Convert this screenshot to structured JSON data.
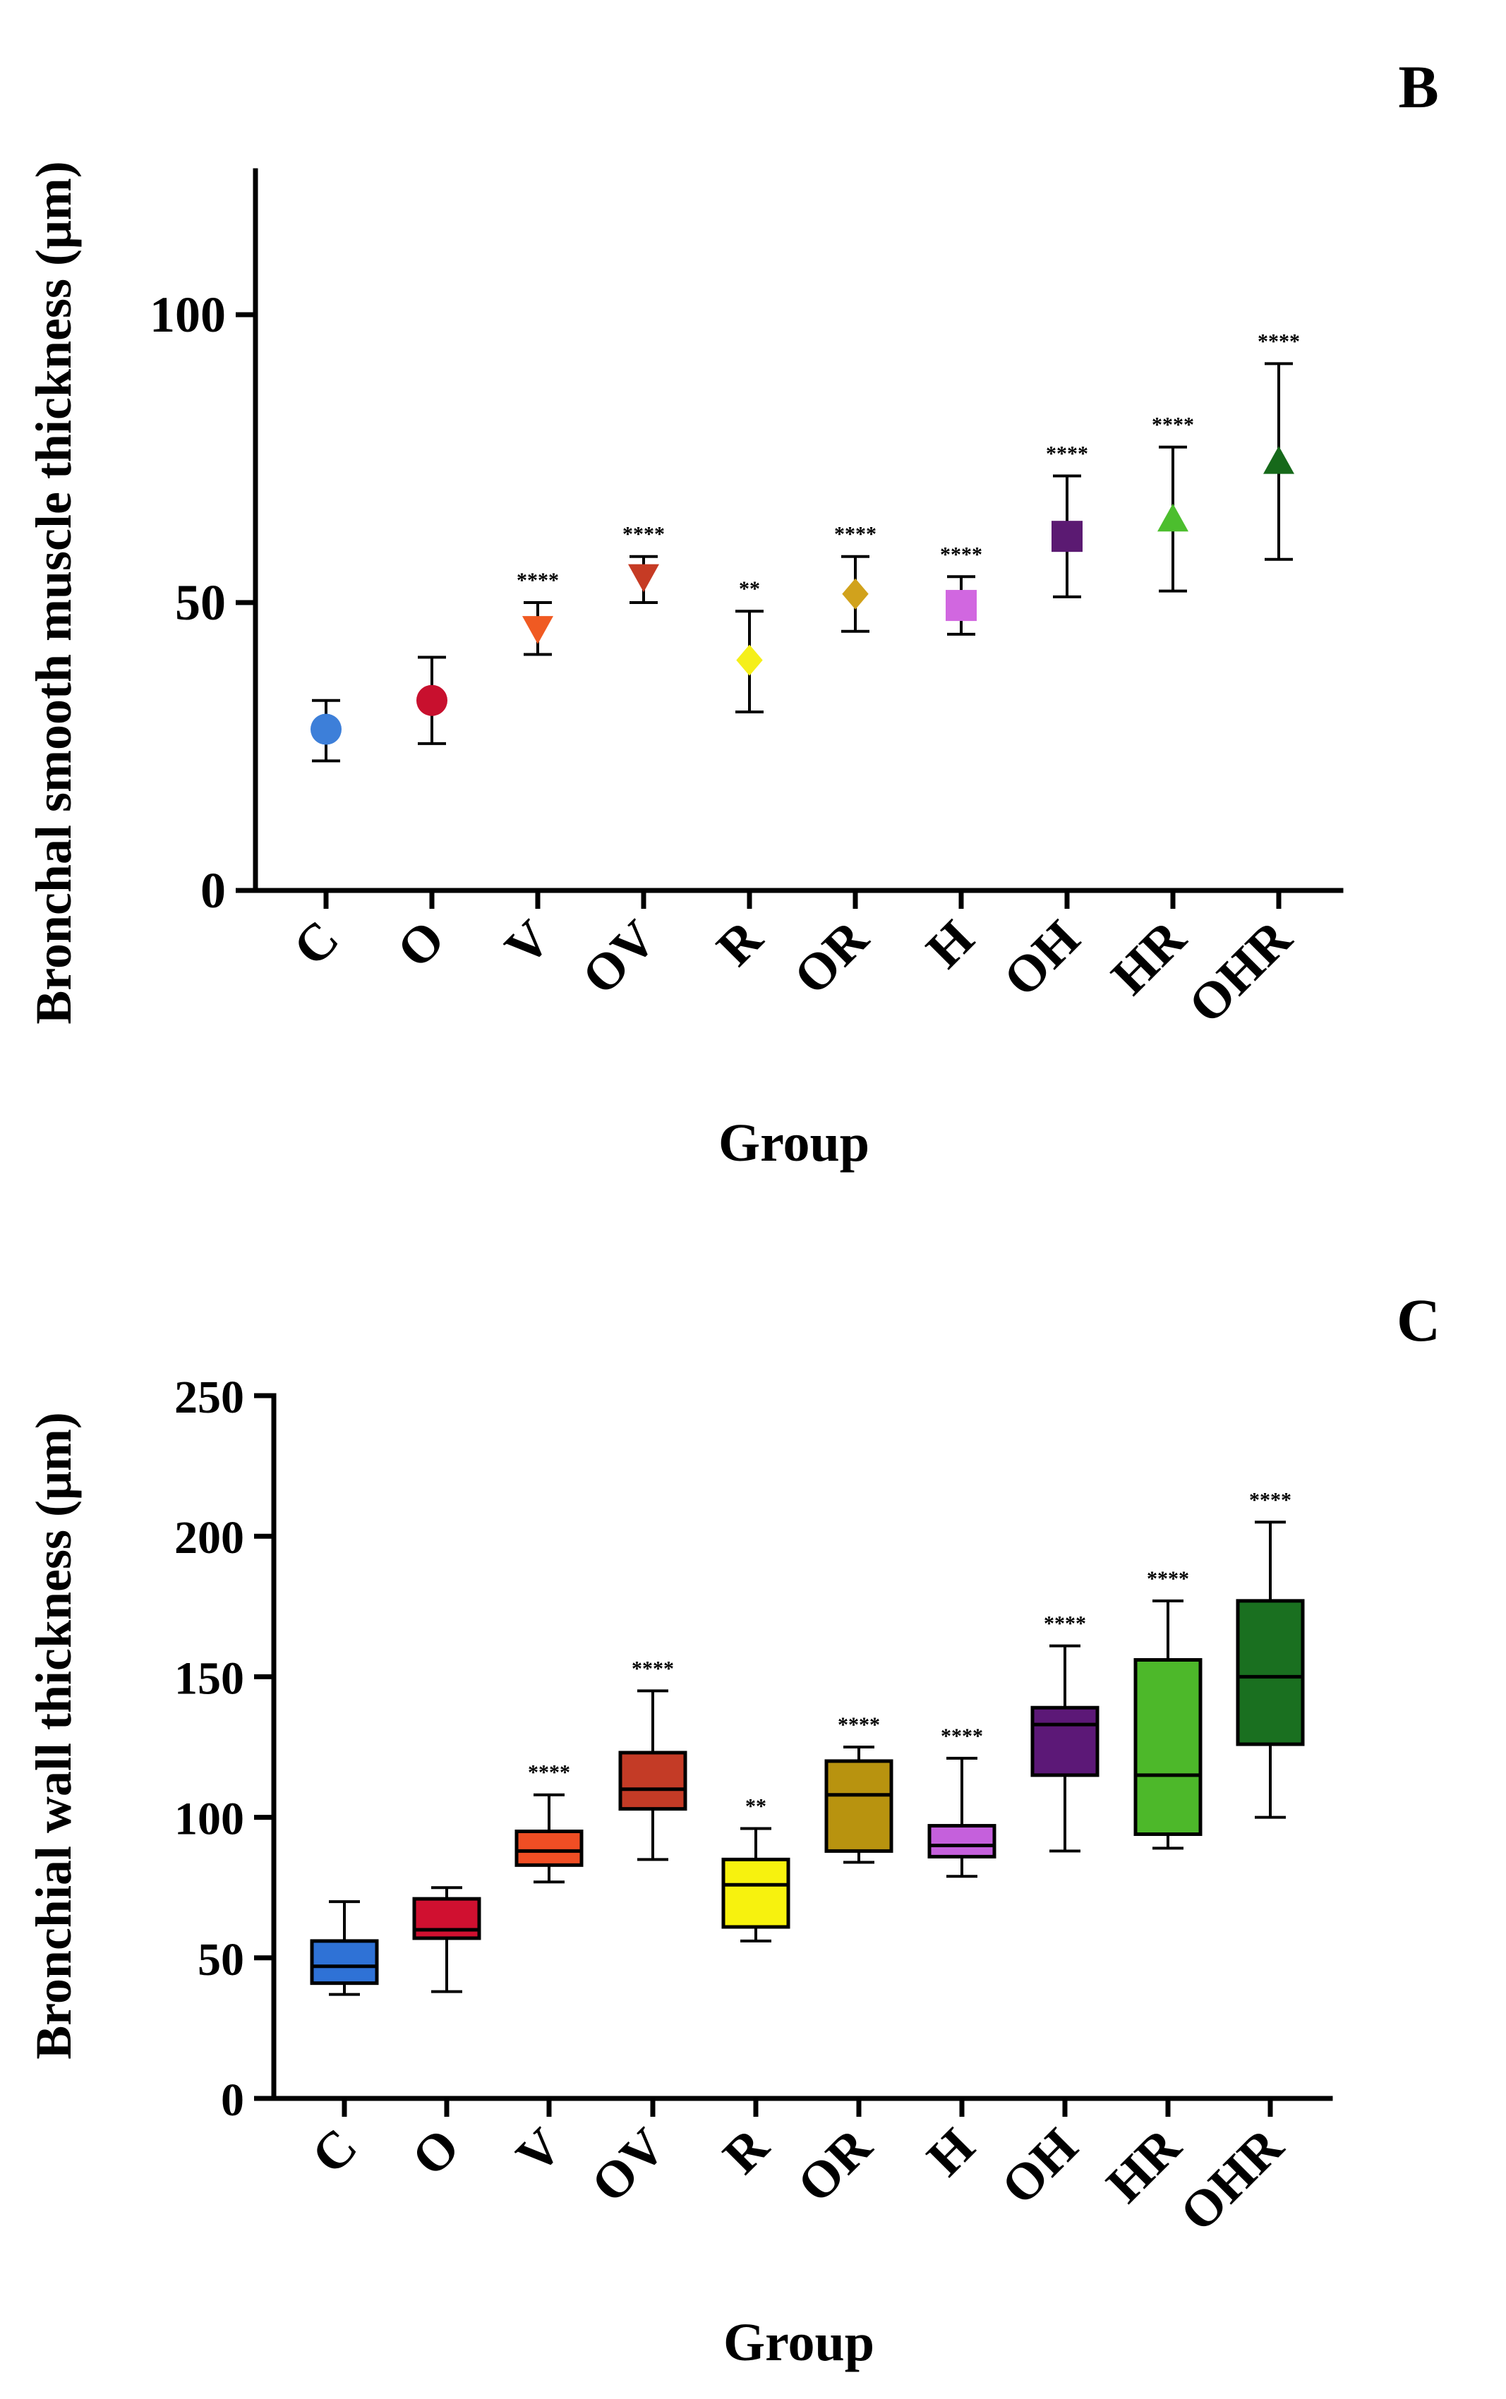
{
  "chart_data": [
    {
      "type": "scatter",
      "panel_label": "B",
      "title": "",
      "xlabel": "Group",
      "ylabel": "Bronchal smooth muscle thickness (μm)",
      "ylim": [
        0,
        125
      ],
      "yticks": [
        0,
        50,
        100
      ],
      "ytick_labels": [
        "0",
        "50",
        "100"
      ],
      "categories": [
        "C",
        "O",
        "V",
        "OV",
        "R",
        "OR",
        "H",
        "OH",
        "HR",
        "OHR"
      ],
      "series": [
        {
          "name": "C",
          "mean": 28,
          "err_low": 22.5,
          "err_high": 33,
          "marker": "circle",
          "color": "#3d7fd9",
          "significance": ""
        },
        {
          "name": "O",
          "mean": 33,
          "err_low": 25.5,
          "err_high": 40.5,
          "marker": "circle",
          "color": "#c8102e",
          "significance": ""
        },
        {
          "name": "V",
          "mean": 45.5,
          "err_low": 41,
          "err_high": 50,
          "marker": "triangle-down",
          "color": "#f05a22",
          "significance": "****"
        },
        {
          "name": "OV",
          "mean": 54.5,
          "err_low": 50,
          "err_high": 58,
          "marker": "triangle-down",
          "color": "#c63b24",
          "significance": "****"
        },
        {
          "name": "R",
          "mean": 40,
          "err_low": 31,
          "err_high": 48.5,
          "marker": "diamond",
          "color": "#f5ef1a",
          "significance": "**"
        },
        {
          "name": "OR",
          "mean": 51.5,
          "err_low": 45,
          "err_high": 58,
          "marker": "diamond",
          "color": "#d1a21c",
          "significance": "****"
        },
        {
          "name": "H",
          "mean": 49.5,
          "err_low": 44.5,
          "err_high": 54.5,
          "marker": "square",
          "color": "#d167e0",
          "significance": "****"
        },
        {
          "name": "OH",
          "mean": 61.5,
          "err_low": 51,
          "err_high": 72,
          "marker": "square",
          "color": "#5b1a72",
          "significance": "****"
        },
        {
          "name": "HR",
          "mean": 64.5,
          "err_low": 52,
          "err_high": 77,
          "marker": "triangle-up",
          "color": "#4cbe2e",
          "significance": "****"
        },
        {
          "name": "OHR",
          "mean": 74.5,
          "err_low": 57.5,
          "err_high": 91.5,
          "marker": "triangle-up",
          "color": "#16691a",
          "significance": "****"
        }
      ]
    },
    {
      "type": "box",
      "panel_label": "C",
      "title": "",
      "xlabel": "Group",
      "ylabel": "Bronchial wall thickness (μm)",
      "ylim": [
        0,
        250
      ],
      "yticks": [
        0,
        50,
        100,
        150,
        200,
        250
      ],
      "ytick_labels": [
        "0",
        "50",
        "100",
        "150",
        "200",
        "250"
      ],
      "categories": [
        "C",
        "O",
        "V",
        "OV",
        "R",
        "OR",
        "H",
        "OH",
        "HR",
        "OHR"
      ],
      "series": [
        {
          "name": "C",
          "min": 37,
          "q1": 41,
          "median": 47,
          "q3": 56,
          "max": 70,
          "color": "#2f72d6",
          "significance": ""
        },
        {
          "name": "O",
          "min": 38,
          "q1": 57,
          "median": 60,
          "q3": 71,
          "max": 75,
          "color": "#d01030",
          "significance": ""
        },
        {
          "name": "V",
          "min": 77,
          "q1": 83,
          "median": 88,
          "q3": 95,
          "max": 108,
          "color": "#f04e24",
          "significance": "****"
        },
        {
          "name": "OV",
          "min": 85,
          "q1": 103,
          "median": 110,
          "q3": 123,
          "max": 145,
          "color": "#c43b26",
          "significance": "****"
        },
        {
          "name": "R",
          "min": 56,
          "q1": 61,
          "median": 76,
          "q3": 85,
          "max": 96,
          "color": "#f7f20e",
          "significance": "**"
        },
        {
          "name": "OR",
          "min": 84,
          "q1": 88,
          "median": 108,
          "q3": 120,
          "max": 125,
          "color": "#b8930f",
          "significance": "****"
        },
        {
          "name": "H",
          "min": 79,
          "q1": 86,
          "median": 90,
          "q3": 97,
          "max": 121,
          "color": "#c560dc",
          "significance": "****"
        },
        {
          "name": "OH",
          "min": 88,
          "q1": 115,
          "median": 133,
          "q3": 139,
          "max": 161,
          "color": "#5c1877",
          "significance": "****"
        },
        {
          "name": "HR",
          "min": 89,
          "q1": 94,
          "median": 115,
          "q3": 156,
          "max": 177,
          "color": "#4db82a",
          "significance": "****"
        },
        {
          "name": "OHR",
          "min": 100,
          "q1": 126,
          "median": 150,
          "q3": 177,
          "max": 205,
          "color": "#1a7020",
          "significance": "****"
        }
      ]
    }
  ]
}
